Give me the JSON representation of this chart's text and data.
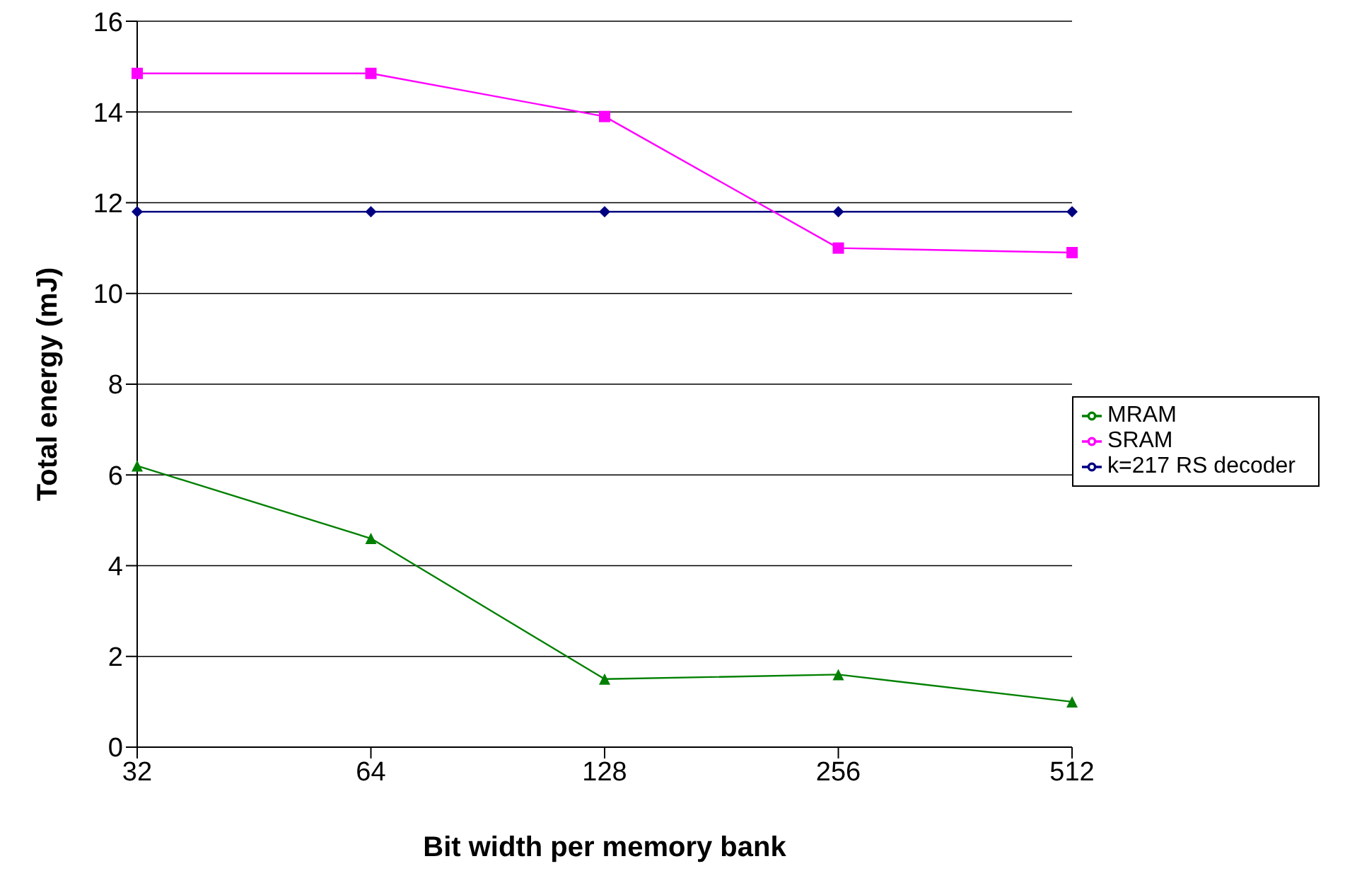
{
  "chart_data": {
    "type": "line",
    "xlabel": "Bit width per memory bank",
    "ylabel": "Total energy (mJ)",
    "categories": [
      "32",
      "64",
      "128",
      "256",
      "512"
    ],
    "series": [
      {
        "name": "k=217 RS decoder",
        "color": "#000080",
        "marker": "diamond",
        "values": [
          11.8,
          11.8,
          11.8,
          11.8,
          11.8
        ]
      },
      {
        "name": "SRAM",
        "color": "#ff00ff",
        "marker": "square",
        "values": [
          14.85,
          14.85,
          13.9,
          11.0,
          10.9
        ]
      },
      {
        "name": "MRAM",
        "color": "#008000",
        "marker": "triangle",
        "values": [
          6.2,
          4.6,
          1.5,
          1.6,
          1.0
        ]
      }
    ],
    "ylim": [
      0,
      16
    ],
    "yticks": [
      0,
      2,
      4,
      6,
      8,
      10,
      12,
      14,
      16
    ],
    "grid": "y",
    "legend": "right"
  }
}
